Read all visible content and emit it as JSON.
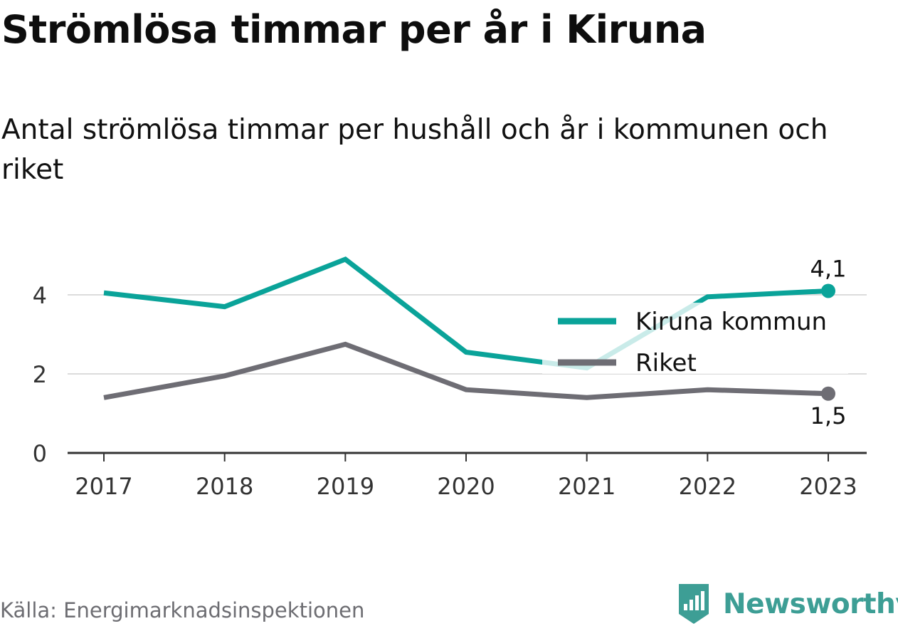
{
  "title": "Strömlösa timmar per år i Kiruna",
  "subtitle": "Antal strömlösa timmar per hushåll och år i kommunen och riket",
  "source": "Källa: Energimarknadsinspektionen",
  "brand": {
    "name": "Newsworthy",
    "icon": "newsworthy-logo-icon",
    "color": "#3d9e95"
  },
  "chart_data": {
    "type": "line",
    "categories": [
      "2017",
      "2018",
      "2019",
      "2020",
      "2021",
      "2022",
      "2023"
    ],
    "series": [
      {
        "name": "Kiruna kommun",
        "color": "#0aa399",
        "values": [
          4.05,
          3.7,
          4.9,
          2.55,
          2.15,
          3.95,
          4.1
        ],
        "end_label": "4,1"
      },
      {
        "name": "Riket",
        "color": "#6e6d74",
        "values": [
          1.4,
          1.95,
          2.75,
          1.6,
          1.4,
          1.6,
          1.5
        ],
        "end_label": "1,5"
      }
    ],
    "y_ticks": [
      0,
      2,
      4
    ],
    "y_tick_labels": [
      "0",
      "2",
      "4"
    ],
    "ylim": [
      0,
      5.2
    ],
    "grid": true,
    "legend_position": "right"
  }
}
